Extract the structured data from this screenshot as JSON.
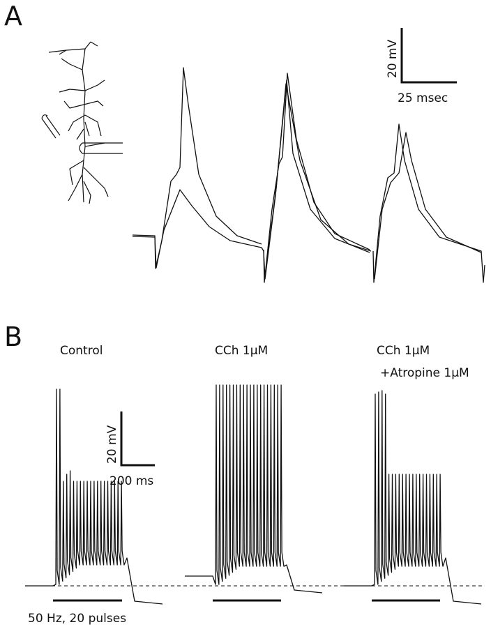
{
  "panel_a": {
    "label": "A",
    "scale_bar": {
      "vertical": "20 mV",
      "horizontal": "25 msec"
    }
  },
  "panel_b": {
    "label": "B",
    "conditions": [
      {
        "title": "Control"
      },
      {
        "title": "CCh 1μM"
      },
      {
        "title": "CCh 1μM",
        "subtitle": "+Atropine 1μM"
      }
    ],
    "scale_bar": {
      "vertical": "20 mV",
      "horizontal": "200 ms"
    },
    "stimulus": "50 Hz, 20 pulses"
  }
}
